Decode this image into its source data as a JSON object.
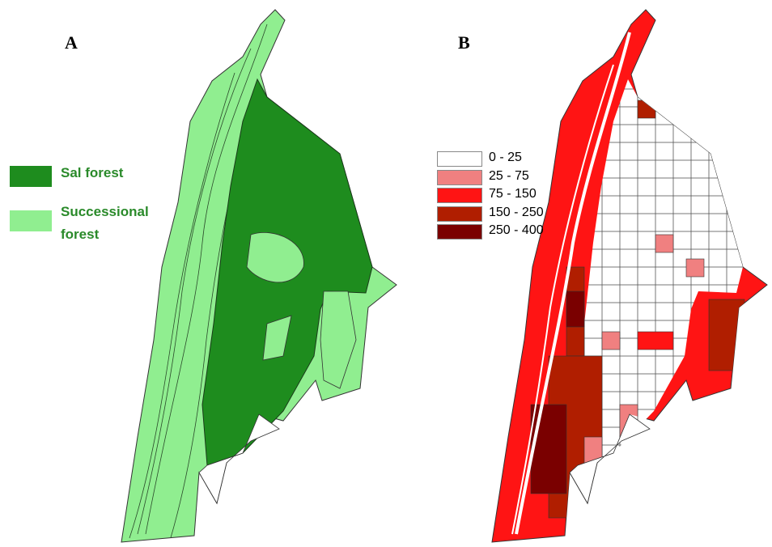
{
  "panels": [
    {
      "label": "A",
      "legend": [
        {
          "label": "Sal forest",
          "color": "#1e8c1e"
        },
        {
          "label": "Successional forest",
          "color": "#90ee90"
        }
      ]
    },
    {
      "label": "B",
      "legend": [
        {
          "label": "0 - 25",
          "color": "#ffffff"
        },
        {
          "label": "25 - 75",
          "color": "#f08080"
        },
        {
          "label": "75 - 150",
          "color": "#ff1414"
        },
        {
          "label": "150 - 250",
          "color": "#b01e00"
        },
        {
          "label": "250 - 400",
          "color": "#7a0000"
        }
      ]
    }
  ]
}
